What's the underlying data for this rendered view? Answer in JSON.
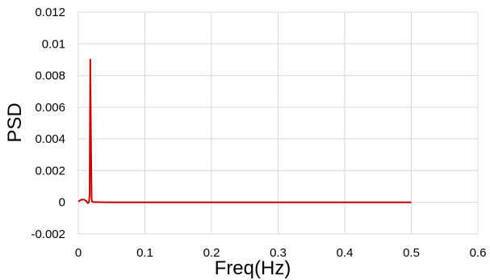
{
  "chart_data": {
    "type": "line",
    "xlabel": "Freq(Hz)",
    "ylabel": "PSD",
    "xlim": [
      0,
      0.6
    ],
    "ylim": [
      -0.002,
      0.012
    ],
    "x_ticks": [
      "0",
      "0.1",
      "0.2",
      "0.3",
      "0.4",
      "0.5",
      "0.6"
    ],
    "y_ticks": [
      "-0.002",
      "0",
      "0.002",
      "0.004",
      "0.006",
      "0.008",
      "0.01",
      "0.012"
    ],
    "grid": true,
    "series": [
      {
        "color": "#c00000",
        "x": [
          0,
          0.003,
          0.006,
          0.009,
          0.012,
          0.014,
          0.016,
          0.017,
          0.018,
          0.019,
          0.02,
          0.021,
          0.022,
          0.025,
          0.03,
          0.05,
          0.1,
          0.2,
          0.3,
          0.4,
          0.5
        ],
        "y": [
          5e-05,
          0.00013,
          0.00018,
          0.00016,
          8e-05,
          -5e-05,
          0.0,
          0.0005,
          0.009,
          0.004,
          0.0002,
          3e-05,
          2e-05,
          1e-05,
          1e-05,
          0.0,
          0.0,
          0.0,
          0.0,
          0.0,
          0.0
        ]
      }
    ]
  }
}
